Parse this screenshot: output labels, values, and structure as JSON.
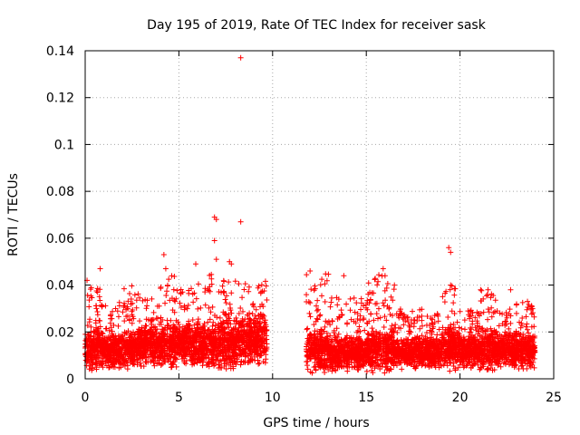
{
  "chart_data": {
    "type": "scatter",
    "title": "Day 195 of 2019, Rate Of TEC Index for receiver sask",
    "xlabel": "GPS time / hours",
    "ylabel": "ROTI / TECUs",
    "xlim": [
      0,
      25
    ],
    "ylim": [
      0,
      0.14
    ],
    "x_ticks": [
      0,
      5,
      10,
      15,
      20,
      25
    ],
    "y_ticks": [
      0,
      0.02,
      0.04,
      0.06,
      0.08,
      0.1,
      0.12,
      0.14
    ],
    "x_tick_labels": [
      "0",
      "5",
      "10",
      "15",
      "20",
      "25"
    ],
    "y_tick_labels": [
      "0",
      "0.02",
      "0.04",
      "0.06",
      "0.08",
      "0.1",
      "0.12",
      "0.14"
    ],
    "grid": true,
    "marker": "+",
    "color": "#ff0000",
    "data_gap_hours": [
      9.7,
      11.8
    ],
    "notable_points": [
      {
        "x": 8.3,
        "y": 0.137
      },
      {
        "x": 6.9,
        "y": 0.069
      },
      {
        "x": 7.0,
        "y": 0.068
      },
      {
        "x": 8.3,
        "y": 0.067
      },
      {
        "x": 6.9,
        "y": 0.059
      },
      {
        "x": 19.4,
        "y": 0.056
      },
      {
        "x": 19.5,
        "y": 0.054
      },
      {
        "x": 4.2,
        "y": 0.053
      },
      {
        "x": 7.0,
        "y": 0.051
      },
      {
        "x": 7.7,
        "y": 0.05
      },
      {
        "x": 7.8,
        "y": 0.049
      },
      {
        "x": 4.3,
        "y": 0.047
      },
      {
        "x": 0.8,
        "y": 0.047
      },
      {
        "x": 5.9,
        "y": 0.049
      },
      {
        "x": 15.9,
        "y": 0.047
      },
      {
        "x": 12.0,
        "y": 0.046
      },
      {
        "x": 13.8,
        "y": 0.044
      },
      {
        "x": 0.1,
        "y": 0.042
      },
      {
        "x": 16.0,
        "y": 0.044
      },
      {
        "x": 16.5,
        "y": 0.04
      },
      {
        "x": 19.5,
        "y": 0.04
      },
      {
        "x": 21.1,
        "y": 0.038
      },
      {
        "x": 22.7,
        "y": 0.038
      },
      {
        "x": 23.6,
        "y": 0.033
      }
    ],
    "density_profile": [
      {
        "x0": 0.0,
        "x1": 1.0,
        "base": 0.013,
        "spread": 0.01,
        "peak": 0.04
      },
      {
        "x0": 1.0,
        "x1": 2.0,
        "base": 0.012,
        "spread": 0.008,
        "peak": 0.033
      },
      {
        "x0": 2.0,
        "x1": 3.0,
        "base": 0.013,
        "spread": 0.009,
        "peak": 0.04
      },
      {
        "x0": 3.0,
        "x1": 4.0,
        "base": 0.014,
        "spread": 0.01,
        "peak": 0.036
      },
      {
        "x0": 4.0,
        "x1": 5.0,
        "base": 0.015,
        "spread": 0.011,
        "peak": 0.045
      },
      {
        "x0": 5.0,
        "x1": 6.0,
        "base": 0.015,
        "spread": 0.01,
        "peak": 0.04
      },
      {
        "x0": 6.0,
        "x1": 7.0,
        "base": 0.014,
        "spread": 0.011,
        "peak": 0.045
      },
      {
        "x0": 7.0,
        "x1": 8.0,
        "base": 0.014,
        "spread": 0.011,
        "peak": 0.045
      },
      {
        "x0": 8.0,
        "x1": 9.7,
        "base": 0.016,
        "spread": 0.012,
        "peak": 0.042
      },
      {
        "x0": 11.8,
        "x1": 13.0,
        "base": 0.012,
        "spread": 0.01,
        "peak": 0.045
      },
      {
        "x0": 13.0,
        "x1": 14.0,
        "base": 0.011,
        "spread": 0.008,
        "peak": 0.035
      },
      {
        "x0": 14.0,
        "x1": 15.0,
        "base": 0.011,
        "spread": 0.008,
        "peak": 0.035
      },
      {
        "x0": 15.0,
        "x1": 16.5,
        "base": 0.012,
        "spread": 0.01,
        "peak": 0.045
      },
      {
        "x0": 16.5,
        "x1": 18.0,
        "base": 0.011,
        "spread": 0.007,
        "peak": 0.03
      },
      {
        "x0": 18.0,
        "x1": 19.0,
        "base": 0.011,
        "spread": 0.007,
        "peak": 0.028
      },
      {
        "x0": 19.0,
        "x1": 20.0,
        "base": 0.013,
        "spread": 0.01,
        "peak": 0.04
      },
      {
        "x0": 20.0,
        "x1": 21.0,
        "base": 0.012,
        "spread": 0.008,
        "peak": 0.03
      },
      {
        "x0": 21.0,
        "x1": 22.0,
        "base": 0.013,
        "spread": 0.01,
        "peak": 0.038
      },
      {
        "x0": 22.0,
        "x1": 23.0,
        "base": 0.012,
        "spread": 0.008,
        "peak": 0.03
      },
      {
        "x0": 23.0,
        "x1": 24.0,
        "base": 0.012,
        "spread": 0.008,
        "peak": 0.033
      }
    ]
  }
}
